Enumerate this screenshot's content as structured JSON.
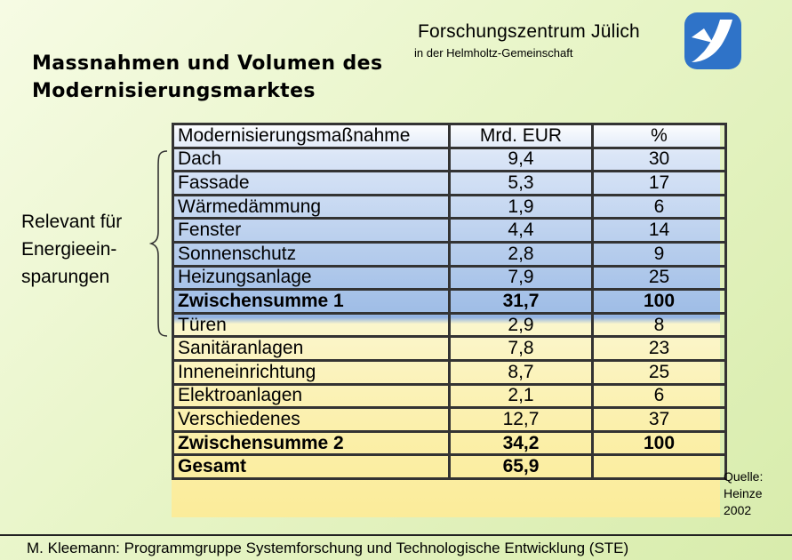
{
  "header": {
    "org_name": "Forschungszentrum Jülich",
    "org_sub": "in der Helmholtz-Gemeinschaft",
    "title_line1": "Massnahmen und Volumen des",
    "title_line2": "Modernisierungsmarktes"
  },
  "side_label": {
    "line1": "Relevant für",
    "line2": "Energieein-",
    "line3": "sparungen"
  },
  "table": {
    "headers": [
      "Modernisierungsmaßnahme",
      "Mrd. EUR",
      "%"
    ],
    "rows": [
      {
        "measure": "Dach",
        "value": "9,4",
        "percent": "30"
      },
      {
        "measure": "Fassade",
        "value": "5,3",
        "percent": "17"
      },
      {
        "measure": "Wärmedämmung",
        "value": "1,9",
        "percent": "6"
      },
      {
        "measure": "Fenster",
        "value": "4,4",
        "percent": "14"
      },
      {
        "measure": "Sonnenschutz",
        "value": "2,8",
        "percent": "9"
      },
      {
        "measure": "Heizungsanlage",
        "value": "7,9",
        "percent": "25"
      },
      {
        "measure": "Zwischensumme 1",
        "value": "31,7",
        "percent": "100",
        "bold": true
      },
      {
        "measure": "Türen",
        "value": "2,9",
        "percent": "8"
      },
      {
        "measure": "Sanitäranlagen",
        "value": "7,8",
        "percent": "23"
      },
      {
        "measure": "Inneneinrichtung",
        "value": "8,7",
        "percent": "25"
      },
      {
        "measure": "Elektroanlagen",
        "value": "2,1",
        "percent": "6"
      },
      {
        "measure": "Verschiedenes",
        "value": "12,7",
        "percent": "37"
      },
      {
        "measure": "Zwischensumme 2",
        "value": "34,2",
        "percent": "100",
        "bold": true
      },
      {
        "measure": "Gesamt",
        "value": "65,9",
        "percent": "",
        "bold": true
      }
    ]
  },
  "source": {
    "line1": "Quelle:",
    "line2": "Heinze",
    "line3": "2002"
  },
  "footer": "M. Kleemann: Programmgruppe Systemforschung und Technologische Entwicklung (STE)",
  "colors": {
    "logo_blue": "#2f73c8",
    "upper_table": "#9fbde6",
    "lower_table": "#fbef9f"
  }
}
